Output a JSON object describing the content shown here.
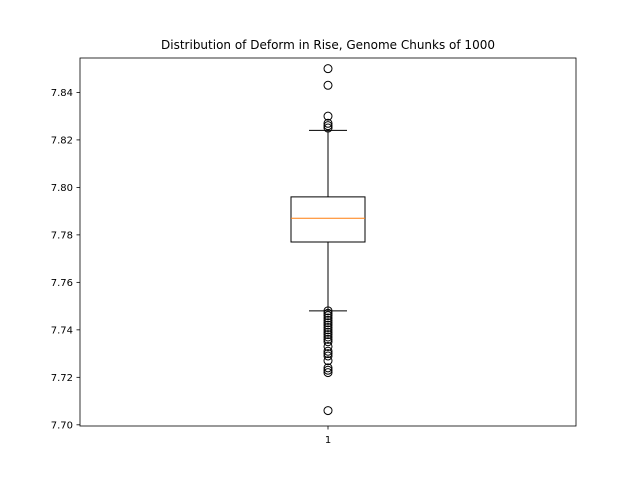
{
  "chart_data": {
    "type": "box",
    "title": "Distribution of Deform in Rise, Genome Chunks of 1000",
    "xlabel": "",
    "ylabel": "",
    "categories": [
      "1"
    ],
    "ylim": [
      7.6995,
      7.8545
    ],
    "yticks": [
      7.7,
      7.72,
      7.74,
      7.76,
      7.78,
      7.8,
      7.82,
      7.84
    ],
    "ytick_labels": [
      "7.70",
      "7.72",
      "7.74",
      "7.76",
      "7.78",
      "7.80",
      "7.82",
      "7.84"
    ],
    "grid": false,
    "box": {
      "median": 7.787,
      "q1": 7.777,
      "q3": 7.796,
      "whisker_low": 7.748,
      "whisker_high": 7.824
    },
    "outliers": [
      7.85,
      7.843,
      7.83,
      7.827,
      7.826,
      7.825,
      7.748,
      7.747,
      7.746,
      7.745,
      7.744,
      7.743,
      7.742,
      7.741,
      7.74,
      7.739,
      7.738,
      7.737,
      7.736,
      7.735,
      7.733,
      7.731,
      7.73,
      7.729,
      7.727,
      7.724,
      7.723,
      7.722,
      7.706
    ],
    "colors": {
      "box": "#000000",
      "median": "#ff7f0e",
      "outlier_edge": "#000000"
    }
  }
}
